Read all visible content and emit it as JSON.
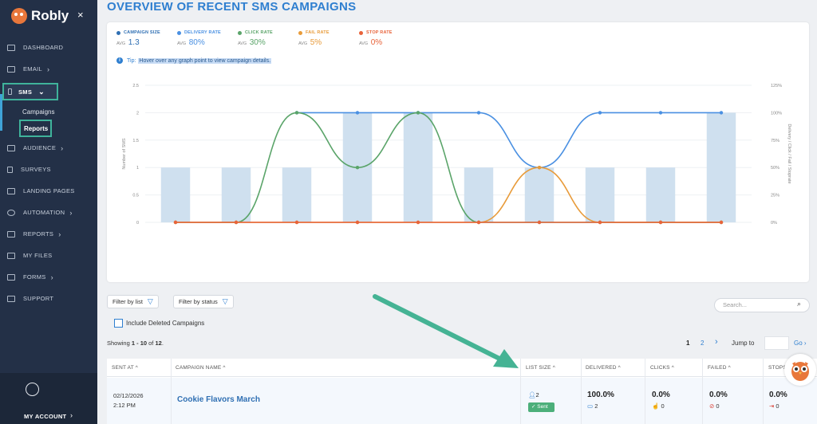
{
  "brand": {
    "name": "Robly",
    "close": "×"
  },
  "sidebar": {
    "items": [
      {
        "label": "DASHBOARD",
        "chevron": ""
      },
      {
        "label": "EMAIL",
        "chevron": "›"
      },
      {
        "label": "SMS",
        "chevron": "⌄"
      },
      {
        "label": "AUDIENCE",
        "chevron": "›"
      },
      {
        "label": "SURVEYS",
        "chevron": ""
      },
      {
        "label": "LANDING PAGES",
        "chevron": ""
      },
      {
        "label": "AUTOMATION",
        "chevron": "›"
      },
      {
        "label": "REPORTS",
        "chevron": "›"
      },
      {
        "label": "MY FILES",
        "chevron": ""
      },
      {
        "label": "FORMS",
        "chevron": "›"
      },
      {
        "label": "SUPPORT",
        "chevron": ""
      }
    ],
    "sms_sub": {
      "campaigns": "Campaigns",
      "reports": "Reports"
    },
    "account": {
      "label": "MY ACCOUNT",
      "chevron": "›"
    }
  },
  "page": {
    "title": "OVERVIEW OF RECENT SMS CAMPAIGNS"
  },
  "legend": [
    {
      "name": "CAMPAIGN SIZE",
      "avg_label": "AVG",
      "value": "1.3",
      "color": "#2f6fb3"
    },
    {
      "name": "DELIVERY RATE",
      "avg_label": "AVG",
      "value": "80%",
      "color": "#4a90e2"
    },
    {
      "name": "CLICK RATE",
      "avg_label": "AVG",
      "value": "30%",
      "color": "#5aa469"
    },
    {
      "name": "FAIL RATE",
      "avg_label": "AVG",
      "value": "5%",
      "color": "#e89b3a"
    },
    {
      "name": "STOP RATE",
      "avg_label": "AVG",
      "value": "0%",
      "color": "#e8633a"
    }
  ],
  "tip": {
    "label": "Tip:",
    "text": "Hover over any graph point to view campaign details."
  },
  "chart_data": {
    "type": "bar",
    "ylabel": "Number of SMS",
    "y2label": "Delivery / Click / Fail / Stoprate",
    "ylim": [
      0,
      2.5
    ],
    "y2lim": [
      0,
      125
    ],
    "y_ticks": [
      "0",
      "0.5",
      "1",
      "1.5",
      "2",
      "2.5"
    ],
    "y2_ticks": [
      "0%",
      "25%",
      "50%",
      "75%",
      "100%",
      "125%"
    ],
    "bars": {
      "name": "Campaign Size",
      "values": [
        1,
        1,
        1,
        2,
        2,
        1,
        1,
        1,
        1,
        2
      ],
      "color": "#cfe0ef"
    },
    "series": [
      {
        "name": "Delivery Rate",
        "color": "#4a90e2",
        "values": [
          null,
          null,
          100,
          100,
          100,
          100,
          50,
          100,
          100,
          100
        ]
      },
      {
        "name": "Click Rate",
        "color": "#5aa469",
        "values": [
          0,
          0,
          100,
          50,
          100,
          0,
          0,
          0,
          0,
          0
        ]
      },
      {
        "name": "Fail Rate",
        "color": "#e89b3a",
        "values": [
          0,
          0,
          0,
          0,
          0,
          0,
          50,
          0,
          0,
          0
        ]
      },
      {
        "name": "Stop Rate",
        "color": "#e8633a",
        "values": [
          0,
          0,
          0,
          0,
          0,
          0,
          0,
          0,
          0,
          0
        ]
      }
    ],
    "grid": true
  },
  "filters": {
    "by_list": "Filter by list",
    "by_status": "Filter by status",
    "search_placeholder": "Search..."
  },
  "include_deleted": "Include Deleted Campaigns",
  "showing": {
    "prefix": "Showing ",
    "range": "1 - 10",
    "middle": " of ",
    "total": "12",
    "suffix": "."
  },
  "pagination": {
    "page1": "1",
    "page2": "2",
    "next": "›",
    "jump_label": "Jump to",
    "go": "Go ›"
  },
  "table": {
    "headers": [
      "SENT AT",
      "CAMPAIGN NAME",
      "LIST SIZE",
      "DELIVERED",
      "CLICKS",
      "FAILED",
      "STOPS"
    ],
    "sort_icon": "^",
    "rows": [
      {
        "date": "02/12/2026",
        "time": "2:12 PM",
        "name": "Cookie Flavors March",
        "list_size": "2",
        "status": "Sent",
        "delivered_pct": "100.0%",
        "delivered_count": "2",
        "clicks_pct": "0.0%",
        "clicks_count": "0",
        "failed_pct": "0.0%",
        "failed_count": "0",
        "stops_pct": "0.0%",
        "stops_count": "0"
      }
    ]
  }
}
